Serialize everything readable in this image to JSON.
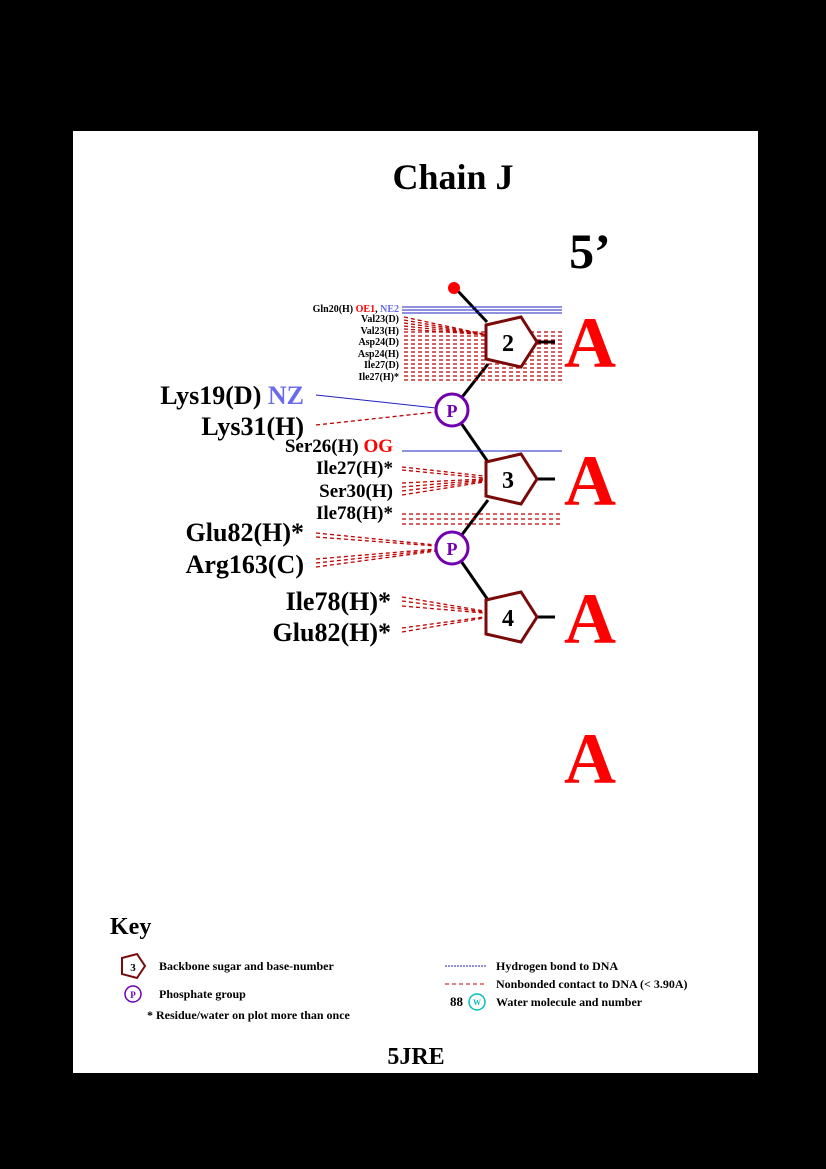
{
  "title": "Chain J",
  "strand_end": "5’",
  "pdb_code": "5JRE",
  "colors": {
    "hbond": "#2020c0",
    "nonbonded": "#c00000",
    "sugar": "#7a0a0a",
    "phosphate": "#7000b0",
    "base": "#ff0000",
    "atom_red": "#ff0000",
    "atom_blue": "#6a6aee",
    "water": "#00c0c0"
  },
  "nucleotides": [
    {
      "number": "2",
      "base": "A"
    },
    {
      "number": "3",
      "base": "A"
    },
    {
      "number": "4",
      "base": "A"
    },
    {
      "number": "",
      "base": "A"
    }
  ],
  "phosphate_label": "P",
  "contacts": {
    "sugar2": [
      {
        "residue": "Gln20(H)",
        "atom1": "OE1",
        "atom2": "NE2"
      },
      {
        "residue": "Val23(D)"
      },
      {
        "residue": "Val23(H)"
      },
      {
        "residue": "Asp24(D)"
      },
      {
        "residue": "Asp24(H)"
      },
      {
        "residue": "Ile27(D)"
      },
      {
        "residue": "Ile27(H)*"
      }
    ],
    "phos1": [
      {
        "residue": "Lys19(D)",
        "atom": "NZ"
      },
      {
        "residue": "Lys31(H)"
      }
    ],
    "sugar3": [
      {
        "residue": "Ser26(H)",
        "atom": "OG"
      },
      {
        "residue": "Ile27(H)*"
      },
      {
        "residue": "Ser30(H)"
      },
      {
        "residue": "Ile78(H)*"
      }
    ],
    "phos2": [
      {
        "residue": "Glu82(H)*"
      },
      {
        "residue": "Arg163(C)"
      }
    ],
    "sugar4": [
      {
        "residue": "Ile78(H)*"
      },
      {
        "residue": "Glu82(H)*"
      }
    ]
  },
  "key": {
    "title": "Key",
    "sugar_example": "3",
    "sugar_text": "Backbone sugar and base-number",
    "phosphate_example": "P",
    "phosphate_text": "Phosphate group",
    "repeat_note": "* Residue/water on plot more than once",
    "hbond_text": "Hydrogen bond to DNA",
    "nonbonded_text": "Nonbonded contact to DNA (< 3.90A)",
    "water_number": "88",
    "water_symbol": "W",
    "water_text": "Water molecule and number"
  }
}
